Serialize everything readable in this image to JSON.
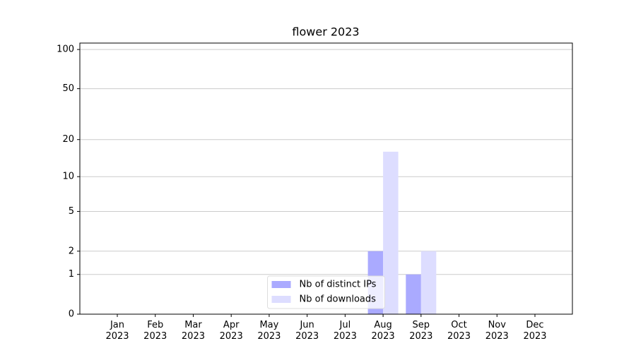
{
  "chart_data": {
    "type": "bar",
    "title": "flower 2023",
    "yscale": "log1p",
    "categories": [
      "Jan\n2023",
      "Feb\n2023",
      "Mar\n2023",
      "Apr\n2023",
      "May\n2023",
      "Jun\n2023",
      "Jul\n2023",
      "Aug\n2023",
      "Sep\n2023",
      "Oct\n2023",
      "Nov\n2023",
      "Dec\n2023"
    ],
    "series": [
      {
        "name": "Nb of distinct IPs",
        "color": "#aaaaff",
        "values": [
          0,
          0,
          0,
          0,
          0,
          0,
          0,
          2,
          1,
          0,
          0,
          0
        ]
      },
      {
        "name": "Nb of downloads",
        "color": "#ddddff",
        "values": [
          0,
          0,
          0,
          0,
          0,
          0,
          0,
          16,
          2,
          0,
          0,
          0
        ]
      }
    ],
    "ylim": [
      0,
      112
    ],
    "yticks": [
      0,
      1,
      2,
      5,
      10,
      20,
      50,
      100
    ],
    "grid": true,
    "legend": "lower center"
  }
}
